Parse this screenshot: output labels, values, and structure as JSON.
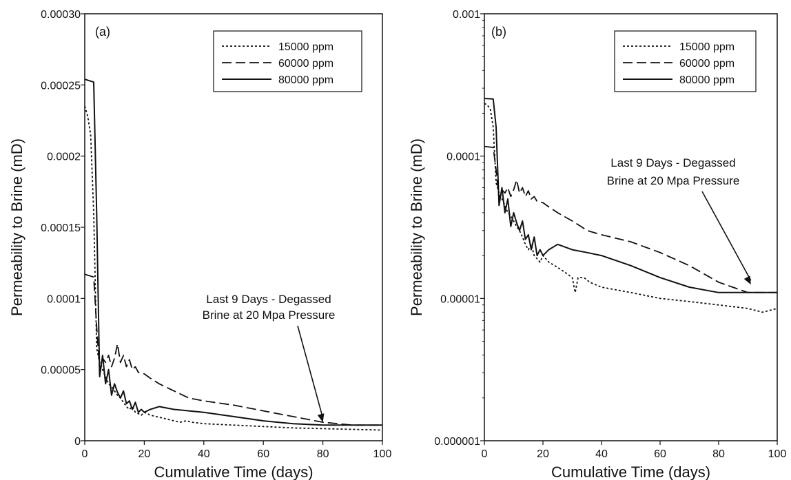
{
  "chart_data": [
    {
      "type": "line",
      "panel_label": "(a)",
      "xlabel": "Cumulative Time (days)",
      "ylabel": "Permeability to Brine (mD)",
      "xlim": [
        0,
        100
      ],
      "ylim": [
        0,
        0.0003
      ],
      "yscale": "linear",
      "x_ticks": [
        "0",
        "20",
        "40",
        "60",
        "80",
        "100"
      ],
      "y_ticks": [
        "0",
        "0.00005",
        "0.0001",
        "0.00015",
        "0.0002",
        "0.00025",
        "0.00030"
      ],
      "grid": false,
      "legend_position": "top-right",
      "annotation": {
        "line1": "Last 9 Days - Degassed",
        "line2": "Brine at 20 Mpa Pressure",
        "arrow_to": [
          80,
          1.3e-05
        ]
      },
      "series": [
        {
          "name": "15000 ppm",
          "style": "dotted",
          "x": [
            0,
            1,
            2,
            3,
            4,
            5,
            6,
            7,
            8,
            9,
            10,
            11,
            12,
            13,
            14,
            15,
            16,
            17,
            18,
            19,
            20,
            22,
            24,
            26,
            28,
            30,
            32,
            34,
            36,
            40,
            50,
            60,
            70,
            80,
            90,
            100
          ],
          "y": [
            0.000235,
            0.000228,
            0.000215,
            0.00016,
            6.5e-05,
            5.5e-05,
            5e-05,
            4.5e-05,
            4e-05,
            3.8e-05,
            3.5e-05,
            3.2e-05,
            3e-05,
            2.7e-05,
            2.4e-05,
            2.2e-05,
            2.4e-05,
            2e-05,
            1.9e-05,
            1.8e-05,
            2e-05,
            1.8e-05,
            1.7e-05,
            1.6e-05,
            1.5e-05,
            1.4e-05,
            1.3e-05,
            1.4e-05,
            1.3e-05,
            1.2e-05,
            1.1e-05,
            1e-05,
            9e-06,
            8.5e-06,
            8e-06,
            7.5e-06
          ]
        },
        {
          "name": "60000 ppm",
          "style": "dashed",
          "x": [
            0,
            3,
            4,
            5,
            6,
            7,
            8,
            9,
            10,
            11,
            12,
            13,
            14,
            15,
            16,
            17,
            18,
            20,
            22,
            25,
            30,
            33,
            35,
            40,
            50,
            60,
            70,
            80,
            90,
            100
          ],
          "y": [
            0.000117,
            0.000115,
            8e-05,
            5e-05,
            5.8e-05,
            5.5e-05,
            6e-05,
            5.2e-05,
            5.8e-05,
            6.8e-05,
            5.5e-05,
            6e-05,
            5.2e-05,
            5.7e-05,
            5e-05,
            5.2e-05,
            4.8e-05,
            4.7e-05,
            4.4e-05,
            4e-05,
            3.5e-05,
            3.2e-05,
            3e-05,
            2.8e-05,
            2.5e-05,
            2.1e-05,
            1.7e-05,
            1.3e-05,
            1.1e-05,
            1.1e-05
          ]
        },
        {
          "name": "80000 ppm",
          "style": "solid",
          "x": [
            0,
            3,
            4,
            5,
            6,
            7,
            8,
            9,
            10,
            11,
            12,
            13,
            14,
            15,
            16,
            17,
            18,
            19,
            20,
            22,
            25,
            30,
            35,
            40,
            50,
            60,
            70,
            80,
            90,
            100
          ],
          "y": [
            0.000254,
            0.000252,
            0.00016,
            4.5e-05,
            6e-05,
            4e-05,
            5e-05,
            3.2e-05,
            4e-05,
            3.4e-05,
            3e-05,
            3.5e-05,
            2.6e-05,
            2.8e-05,
            2.2e-05,
            2.7e-05,
            2e-05,
            2.2e-05,
            2e-05,
            2.2e-05,
            2.4e-05,
            2.2e-05,
            2.1e-05,
            2e-05,
            1.7e-05,
            1.4e-05,
            1.2e-05,
            1.1e-05,
            1.1e-05,
            1.1e-05
          ]
        }
      ]
    },
    {
      "type": "line",
      "panel_label": "(b)",
      "xlabel": "Cumulative Time (days)",
      "ylabel": "Permeability to Brine (mD)",
      "xlim": [
        0,
        100
      ],
      "ylim": [
        1e-06,
        0.001
      ],
      "yscale": "log",
      "x_ticks": [
        "0",
        "20",
        "40",
        "60",
        "80",
        "100"
      ],
      "y_ticks": [
        "0.000001",
        "0.00001",
        "0.0001",
        "0.001"
      ],
      "grid": false,
      "legend_position": "top-right",
      "annotation": {
        "line1": "Last 9 Days - Degassed",
        "line2": "Brine at 20 Mpa Pressure",
        "arrow_to": [
          91,
          1.25e-05
        ]
      },
      "series": [
        {
          "name": "15000 ppm",
          "style": "dotted",
          "x": [
            0,
            1,
            2,
            3,
            4,
            5,
            6,
            7,
            8,
            9,
            10,
            11,
            12,
            13,
            14,
            15,
            16,
            17,
            18,
            19,
            20,
            22,
            24,
            26,
            28,
            30,
            31,
            32,
            34,
            36,
            40,
            50,
            60,
            70,
            80,
            90,
            95,
            100
          ],
          "y": [
            0.000235,
            0.000228,
            0.000215,
            0.00016,
            6.5e-05,
            5.5e-05,
            5e-05,
            4.5e-05,
            4e-05,
            3.8e-05,
            3.5e-05,
            3.2e-05,
            3e-05,
            2.7e-05,
            2.4e-05,
            2.2e-05,
            2.4e-05,
            2e-05,
            1.9e-05,
            1.8e-05,
            2e-05,
            1.8e-05,
            1.7e-05,
            1.6e-05,
            1.5e-05,
            1.4e-05,
            1.1e-05,
            1.4e-05,
            1.4e-05,
            1.3e-05,
            1.2e-05,
            1.1e-05,
            1e-05,
            9.5e-06,
            9e-06,
            8.5e-06,
            8e-06,
            8.5e-06
          ]
        },
        {
          "name": "60000 ppm",
          "style": "dashed",
          "x": [
            0,
            3,
            4,
            5,
            6,
            7,
            8,
            9,
            10,
            11,
            12,
            13,
            14,
            15,
            16,
            17,
            18,
            20,
            22,
            25,
            30,
            33,
            35,
            40,
            50,
            60,
            70,
            80,
            90,
            100
          ],
          "y": [
            0.000117,
            0.000115,
            8e-05,
            5e-05,
            5.8e-05,
            5.5e-05,
            6e-05,
            5.2e-05,
            5.8e-05,
            6.8e-05,
            5.5e-05,
            6e-05,
            5.2e-05,
            5.7e-05,
            5e-05,
            5.2e-05,
            4.8e-05,
            4.7e-05,
            4.4e-05,
            4e-05,
            3.5e-05,
            3.2e-05,
            3e-05,
            2.8e-05,
            2.5e-05,
            2.1e-05,
            1.7e-05,
            1.3e-05,
            1.1e-05,
            1.1e-05
          ]
        },
        {
          "name": "80000 ppm",
          "style": "solid",
          "x": [
            0,
            3,
            4,
            5,
            6,
            7,
            8,
            9,
            10,
            11,
            12,
            13,
            14,
            15,
            16,
            17,
            18,
            19,
            20,
            22,
            25,
            30,
            35,
            40,
            50,
            60,
            70,
            80,
            90,
            100
          ],
          "y": [
            0.000254,
            0.000252,
            0.00016,
            4.5e-05,
            6e-05,
            4e-05,
            5e-05,
            3.2e-05,
            4e-05,
            3.4e-05,
            3e-05,
            3.5e-05,
            2.6e-05,
            2.8e-05,
            2.2e-05,
            2.7e-05,
            2e-05,
            2.2e-05,
            2e-05,
            2.2e-05,
            2.4e-05,
            2.2e-05,
            2.1e-05,
            2e-05,
            1.7e-05,
            1.4e-05,
            1.2e-05,
            1.1e-05,
            1.1e-05,
            1.1e-05
          ]
        }
      ]
    }
  ]
}
